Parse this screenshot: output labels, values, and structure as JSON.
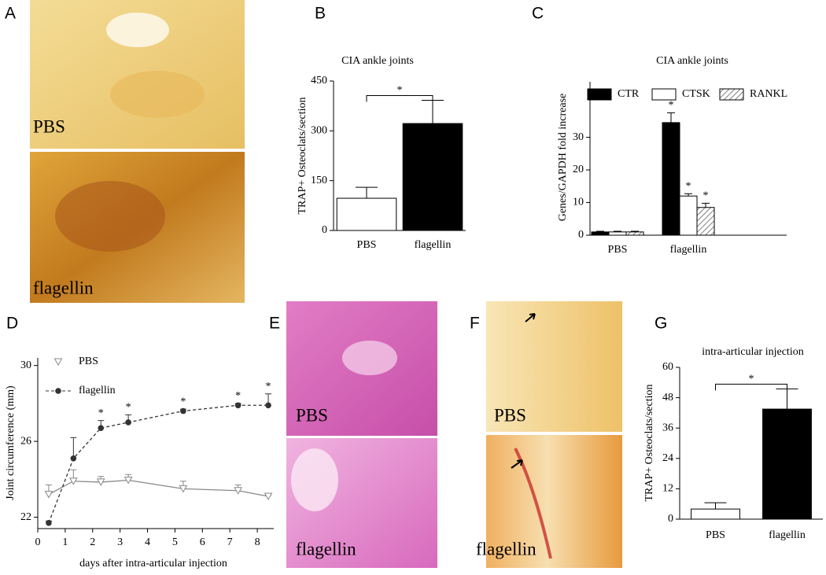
{
  "chart_data": [
    {
      "type": "bar",
      "panel": "B",
      "title": "CIA ankle joints",
      "ylabel": "TRAP+ Osteoclats/section",
      "categories": [
        "PBS",
        "flagellin"
      ],
      "values": [
        97,
        322
      ],
      "errors": [
        33,
        70
      ],
      "colors": [
        "#ffffff",
        "#000000"
      ],
      "ylim": [
        0,
        450
      ],
      "yticks": [
        0,
        150,
        300,
        450
      ],
      "annotations": [
        "*"
      ]
    },
    {
      "type": "grouped-bar",
      "panel": "C",
      "title": "CIA ankle joints",
      "ylabel": "Genes/GAPDH fold increase",
      "categories": [
        "PBS",
        "flagellin"
      ],
      "series": [
        {
          "name": "CTR",
          "color": "#000000",
          "values": [
            1,
            34.5
          ],
          "errors": [
            0.2,
            3
          ]
        },
        {
          "name": "CTSK",
          "color": "#ffffff",
          "values": [
            1,
            12
          ],
          "errors": [
            0.2,
            0.7
          ]
        },
        {
          "name": "RANKL",
          "color": "#ffffff",
          "hatch": true,
          "values": [
            1,
            8.5
          ],
          "errors": [
            0.2,
            1.3
          ]
        }
      ],
      "ylim": [
        0,
        47
      ],
      "yticks": [
        0,
        10,
        20,
        30
      ],
      "annotations": [
        "*",
        "*",
        "*"
      ]
    },
    {
      "type": "line",
      "panel": "D",
      "xlabel": "days after intra-articular injection",
      "ylabel": "Joint circumference (mm)",
      "x": [
        0.4,
        1.3,
        2.3,
        3.3,
        5.3,
        7.3,
        8.4
      ],
      "series": [
        {
          "name": "PBS",
          "color": "#888888",
          "marker": "triangle",
          "dashed": false,
          "values": [
            23.2,
            23.9,
            23.85,
            23.95,
            23.5,
            23.4,
            23.1
          ],
          "errors": [
            0.5,
            0.6,
            0.3,
            0.3,
            0.4,
            0.3,
            0.05
          ]
        },
        {
          "name": "flagellin",
          "color": "#333333",
          "marker": "circle",
          "dashed": true,
          "values": [
            21.7,
            25.1,
            26.7,
            27.0,
            27.6,
            27.9,
            27.9
          ],
          "errors": [
            0.1,
            1.1,
            0.4,
            0.4,
            0.1,
            0.1,
            0.6
          ]
        }
      ],
      "xlim": [
        0,
        8.6
      ],
      "xticks": [
        0,
        1,
        2,
        3,
        4,
        5,
        6,
        7,
        8
      ],
      "ylim": [
        21.4,
        30.4
      ],
      "yticks": [
        22,
        26,
        30
      ],
      "annotations": [
        "*",
        "*",
        "*",
        "*",
        "*"
      ]
    },
    {
      "type": "bar",
      "panel": "G",
      "title": "intra-articular injection",
      "ylabel": "TRAP+ Osteoclats/section",
      "categories": [
        "PBS",
        "flagellin"
      ],
      "values": [
        4,
        43.5
      ],
      "errors": [
        2.5,
        8
      ],
      "colors": [
        "#ffffff",
        "#000000"
      ],
      "ylim": [
        0,
        60
      ],
      "yticks": [
        0,
        12,
        24,
        36,
        48,
        60
      ],
      "annotations": [
        "*"
      ]
    }
  ],
  "images": [
    {
      "panel": "A",
      "labels": [
        "PBS",
        "flagellin"
      ]
    },
    {
      "panel": "E",
      "labels": [
        "PBS",
        "flagellin"
      ]
    },
    {
      "panel": "F",
      "labels": [
        "PBS",
        "flagellin"
      ]
    }
  ]
}
